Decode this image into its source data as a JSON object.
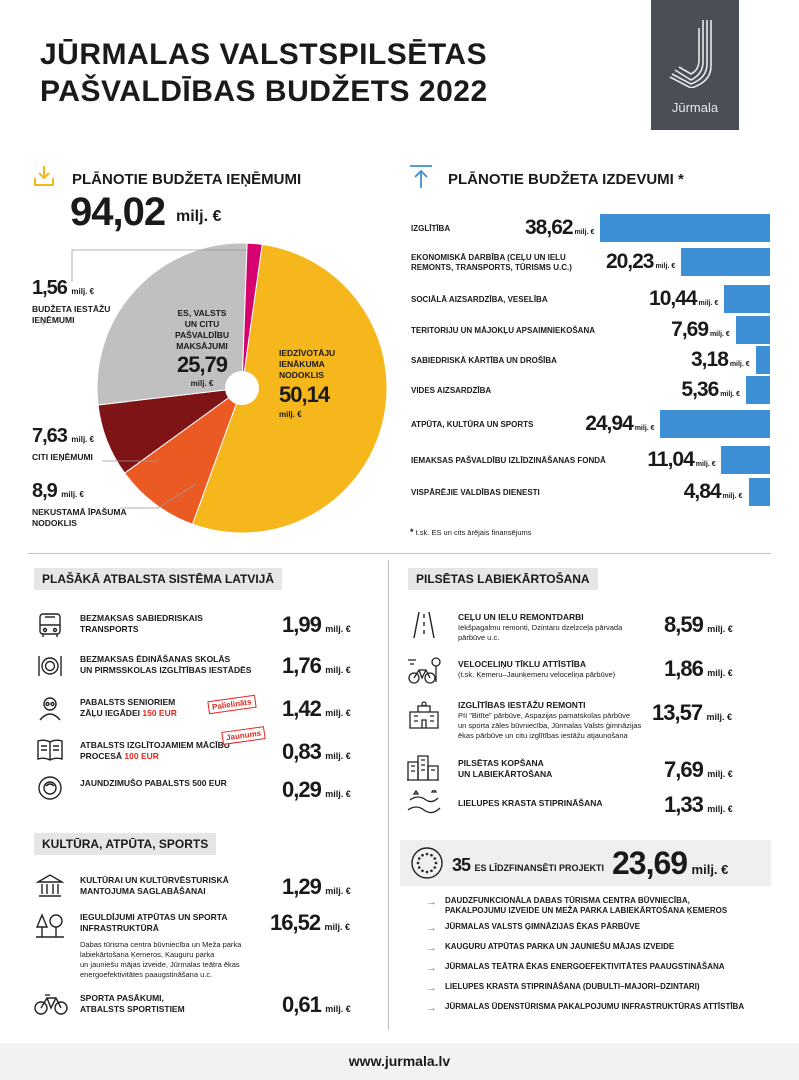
{
  "header": {
    "title_line1": "JŪRMALAS VALSTSPILSĒTAS",
    "title_line2": "PAŠVALDĪBAS BUDŽETS 2022",
    "logo_text": "Jūrmala"
  },
  "colors": {
    "accent_blue": "#3d8fd6",
    "income_tax": "#f5b71c",
    "other_payments": "#c0c0c0",
    "other_income": "#7f1416",
    "property_tax": "#ec5a24",
    "institution_income": "#d6006f",
    "badge_red": "#e3261e"
  },
  "income": {
    "heading": "PLĀNOTIE BUDŽETA IEŅĒMUMI",
    "total": "94,02",
    "total_unit": "milj. €",
    "labels": {
      "institution_value": "1,56",
      "institution_unit": "milj. €",
      "institution_line1": "BUDŽETA IESTĀŽU",
      "institution_line2": "IEŅĒMUMI",
      "other_payments_line1": "ES, VALSTS",
      "other_payments_line2": "UN CITU",
      "other_payments_line3": "PAŠVALDĪBU",
      "other_payments_line4": "MAKSĀJUMI",
      "other_payments_value": "25,79",
      "other_payments_unit": "milj. €",
      "income_tax_line1": "IEDZĪVOTĀJU",
      "income_tax_line2": "IENĀKUMA",
      "income_tax_line3": "NODOKLIS",
      "income_tax_value": "50,14",
      "income_tax_unit": "milj. €",
      "other_income_value": "7,63",
      "other_income_unit": "milj. €",
      "other_income_line1": "CITI IEŅĒMUMI",
      "property_value": "8,9",
      "property_unit": "milj. €",
      "property_line1": "NEKUSTAMĀ ĪPAŠUMA",
      "property_line2": "NODOKLIS"
    }
  },
  "expenses": {
    "heading": "PLĀNOTIE BUDŽETA IZDEVUMI",
    "asterisk": "*",
    "unit": "milj. €",
    "footnote_mark": "*",
    "footnote": "t.sk. ES un cits ārējais finansējums",
    "rows": [
      {
        "label1": "IZGLĪTĪBA",
        "label2": "",
        "value": "38,62"
      },
      {
        "label1": "EKONOMISKĀ DARBĪBA (CEĻU UN IELU",
        "label2": "REMONTS, TRANSPORTS, TŪRISMS U.C.)",
        "value": "20,23"
      },
      {
        "label1": "SOCIĀLĀ AIZSARDZĪBA, VESELĪBA",
        "label2": "",
        "value": "10,44"
      },
      {
        "label1": "TERITORIJU UN MĀJOKĻU APSAIMNIEKOŠANA",
        "label2": "",
        "value": "7,69"
      },
      {
        "label1": "SABIEDRISKĀ KĀRTĪBA UN DROŠĪBA",
        "label2": "",
        "value": "3,18"
      },
      {
        "label1": "VIDES AIZSARDZĪBA",
        "label2": "",
        "value": "5,36"
      },
      {
        "label1": "ATPŪTA, KULTŪRA UN SPORTS",
        "label2": "",
        "value": "24,94"
      },
      {
        "label1": "IEMAKSAS PAŠVALDĪBU IZLĪDZINĀŠANAS FONDĀ",
        "label2": "",
        "value": "11,04"
      },
      {
        "label1": "VISPĀRĒJIE VALDĪBAS DIENESTI",
        "label2": "",
        "value": "4,84"
      }
    ]
  },
  "chart_data": [
    {
      "type": "pie",
      "title": "PLĀNOTIE BUDŽETA IEŅĒMUMI",
      "total": 94.02,
      "unit": "milj. €",
      "slices": [
        {
          "name": "IEDZĪVOTĀJU IENĀKUMA NODOKLIS",
          "value": 50.14,
          "color": "#f5b71c"
        },
        {
          "name": "NEKUSTAMĀ ĪPAŠUMA NODOKLIS",
          "value": 8.9,
          "color": "#ec5a24"
        },
        {
          "name": "CITI IEŅĒMUMI",
          "value": 7.63,
          "color": "#7f1416"
        },
        {
          "name": "ES, VALSTS UN CITU PAŠVALDĪBU MAKSĀJUMI",
          "value": 25.79,
          "color": "#c0c0c0"
        },
        {
          "name": "BUDŽETA IESTĀŽU IEŅĒMUMI",
          "value": 1.56,
          "color": "#d6006f"
        }
      ]
    },
    {
      "type": "bar",
      "orientation": "horizontal",
      "title": "PLĀNOTIE BUDŽETA IZDEVUMI",
      "unit": "milj. €",
      "categories": [
        "IZGLĪTĪBA",
        "EKONOMISKĀ DARBĪBA (CEĻU UN IELU REMONTS, TRANSPORTS, TŪRISMS U.C.)",
        "SOCIĀLĀ AIZSARDZĪBA, VESELĪBA",
        "TERITORIJU UN MĀJOKĻU APSAIMNIEKOŠANA",
        "SABIEDRISKĀ KĀRTĪBA UN DROŠĪBA",
        "VIDES AIZSARDZĪBA",
        "ATPŪTA, KULTŪRA UN SPORTS",
        "IEMAKSAS PAŠVALDĪBU IZLĪDZINĀŠANAS FONDĀ",
        "VISPĀRĒJIE VALDĪBAS DIENESTI"
      ],
      "values": [
        38.62,
        20.23,
        10.44,
        7.69,
        3.18,
        5.36,
        24.94,
        11.04,
        4.84
      ],
      "color": "#3d8fd6"
    }
  ],
  "support": {
    "heading": "PLAŠĀKĀ ATBALSTA SISTĒMA LATVIJĀ",
    "unit": "milj. €",
    "items": [
      {
        "label1": "BEZMAKSAS SABIEDRISKAIS",
        "label2": "TRANSPORTS",
        "value": "1,99",
        "icon": "bus-icon"
      },
      {
        "label1": "BEZMAKSAS ĒDINĀŠANAS SKOLĀS",
        "label2": "UN PIRMSSKOLAS IZGLĪTĪBAS IESTĀDĒS",
        "value": "1,76",
        "icon": "meal-icon"
      },
      {
        "label1": "PABALSTS SENIORIEM",
        "label2": "ZĀĻU IEGĀDEI",
        "label2_red": "150 EUR",
        "badge": "Palielināts",
        "value": "1,42",
        "icon": "senior-icon"
      },
      {
        "label1": "ATBALSTS IZGLĪTOJAMIEM MĀCĪBU",
        "label2": "PROCESĀ",
        "label2_red": "100 EUR",
        "badge": "Jaunums",
        "value": "0,83",
        "icon": "book-icon"
      },
      {
        "label1": "JAUNDZIMUŠO PABALSTS 500 EUR",
        "label2": "",
        "value": "0,29",
        "icon": "baby-icon"
      }
    ]
  },
  "culture": {
    "heading": "KULTŪRA, ATPŪTA, SPORTS",
    "unit": "milj. €",
    "items": [
      {
        "label1": "KULTŪRAI UN KULTŪRVĒSTURISKĀ",
        "label2": "MANTOJUMA SAGLABĀŠANAI",
        "value": "1,29",
        "icon": "museum-icon"
      },
      {
        "label1": "IEGULDĪJUMI ATPŪTAS UN SPORTA",
        "label2": "INFRASTRUKTŪRĀ",
        "value": "16,52",
        "icon": "park-icon",
        "sub": [
          "Dabas tūrisma centra būvniecība un Meža parka",
          "labiekārtošana Ķemeros, Kauguru parka",
          "un jauniešu mājas izveide, Jūrmalas teātra ēkas",
          "energoefektivitātes paaugstināšana u.c."
        ]
      },
      {
        "label1": "SPORTA PASĀKUMI,",
        "label2": "ATBALSTS SPORTISTIEM",
        "value": "0,61",
        "icon": "bicycle-icon"
      }
    ]
  },
  "city": {
    "heading": "PILSĒTAS LABIEKĀRTOŠANA",
    "unit": "milj. €",
    "items": [
      {
        "label1": "CEĻU UN IELU REMONTDARBI",
        "sub": [
          "Iekšpagalmu remonti, Dzintaru dzelzceļa pārvada",
          "pārbūve u.c."
        ],
        "value": "8,59",
        "icon": "road-icon"
      },
      {
        "label1": "VELOCELIŅU TĪKLU ATTĪSTĪBA",
        "sub": [
          "(t.sk. Ķemeru–Jaunķemeru veloceliņa pārbūve)"
        ],
        "value": "1,86",
        "icon": "bike-path-icon"
      },
      {
        "label1": "IZGLĪTĪBAS IESTĀŽU REMONTI",
        "sub": [
          "PII \"Bitīte\" pārbūve, Aspazijas pamatskolas pārbūve",
          "un sporta zāles būvniecība, Jūrmalas Valsts ģimnāzijas",
          "ēkas pārbūve un citu izglītības iestāžu atjaunošana"
        ],
        "value": "13,57",
        "icon": "school-icon"
      },
      {
        "label1": "PILSĒTAS KOPŠANA",
        "label2": "UN LABIEKĀRTOŠANA",
        "sub": [],
        "value": "7,69",
        "icon": "city-icon"
      },
      {
        "label1": "LIELUPES KRASTA STIPRINĀŠANA",
        "sub": [],
        "value": "1,33",
        "icon": "river-icon"
      }
    ]
  },
  "eu": {
    "count": "35",
    "label": "ES LĪDZFINANSĒTI PROJEKTI",
    "value": "23,69",
    "unit": "milj. €",
    "arrow": "→",
    "projects": [
      [
        "DAUDZFUNKCIONĀLA DABAS TŪRISMA CENTRA BŪVNIECĪBA,",
        "PAKALPOJUMU IZVEIDE UN MEŽA PARKA LABIEKĀRTOŠANA ĶEMEROS"
      ],
      [
        "JŪRMALAS VALSTS ĢIMNĀZIJAS ĒKAS PĀRBŪVE"
      ],
      [
        "KAUGURU ATPŪTAS PARKA UN JAUNIEŠU MĀJAS IZVEIDE"
      ],
      [
        "JŪRMALAS TEĀTRA ĒKAS ENERGOEFEKTIVITĀTES PAAUGSTINĀŠANA"
      ],
      [
        "LIELUPES KRASTA STIPRINĀŠANA (DUBULTI–MAJORI–DZINTARI)"
      ],
      [
        "JŪRMALAS ŪDENSTŪRISMA PAKALPOJUMU INFRASTRUKTŪRAS ATTĪSTĪBA"
      ]
    ]
  },
  "footer": {
    "url": "www.jurmala.lv"
  }
}
